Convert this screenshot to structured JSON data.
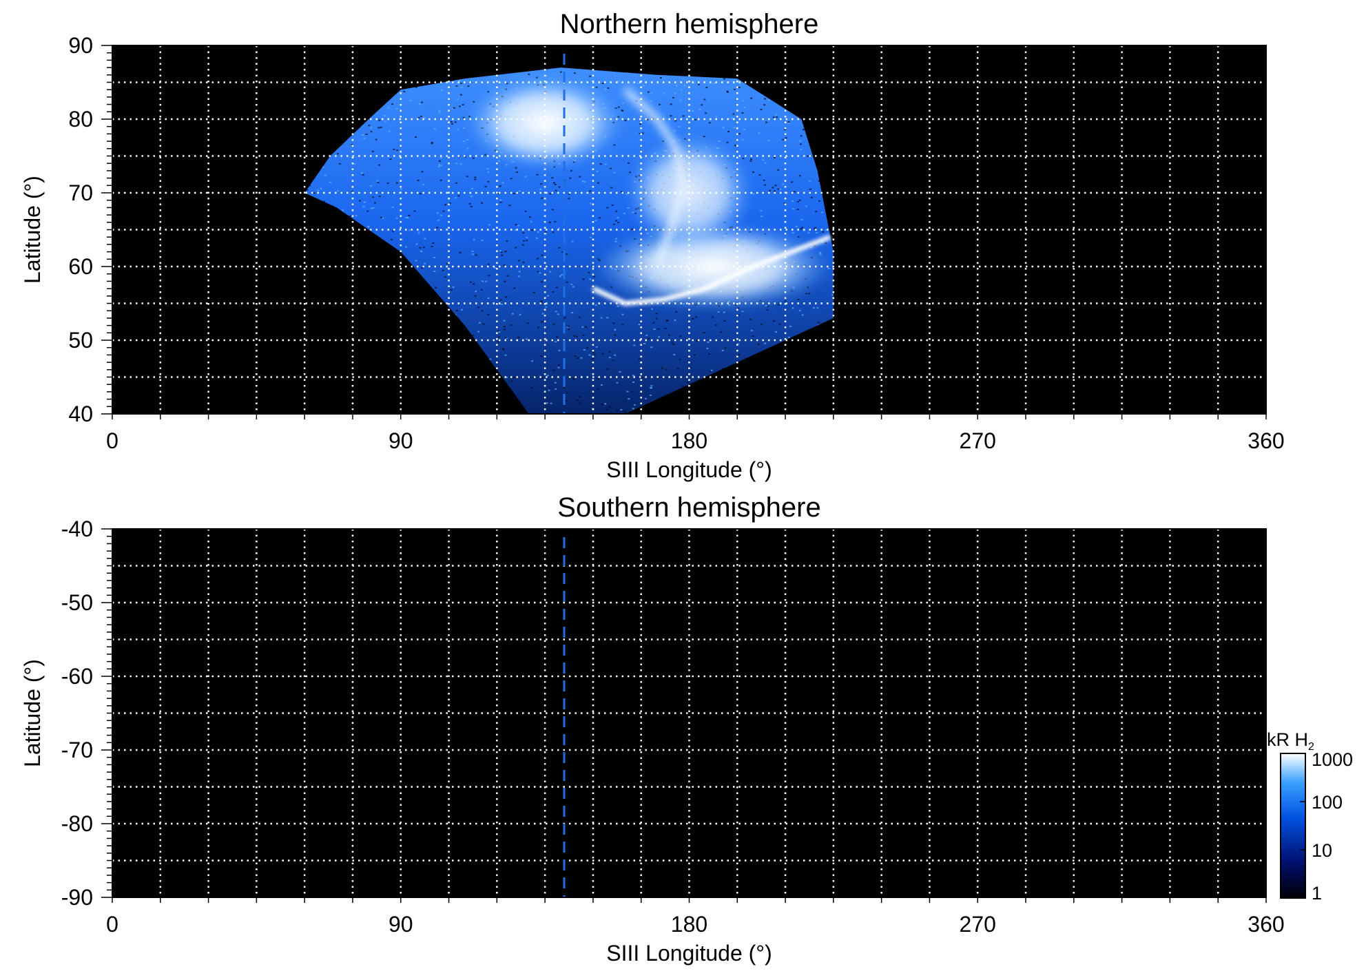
{
  "chart_data": [
    {
      "type": "heatmap",
      "title": "Northern hemisphere",
      "xlabel": "SIII Longitude (°)",
      "ylabel": "Latitude (°)",
      "xlim": [
        0,
        360
      ],
      "ylim": [
        40,
        90
      ],
      "xticks": [
        "0",
        "90",
        "180",
        "270",
        "360"
      ],
      "yticks": [
        "40",
        "50",
        "60",
        "70",
        "80",
        "90"
      ],
      "grid": true,
      "reference_longitude": 141,
      "emission_region": {
        "lon_range": [
          60,
          225
        ],
        "lat_range": [
          40,
          87
        ],
        "boundary": [
          [
            60,
            70
          ],
          [
            68,
            75
          ],
          [
            80,
            80
          ],
          [
            90,
            84
          ],
          [
            110,
            85.5
          ],
          [
            140,
            87
          ],
          [
            170,
            86
          ],
          [
            195,
            85.5
          ],
          [
            215,
            80
          ],
          [
            220,
            73
          ],
          [
            225,
            62
          ],
          [
            225,
            53
          ],
          [
            210,
            50
          ],
          [
            185,
            45
          ],
          [
            160,
            40
          ],
          [
            130,
            40
          ],
          [
            110,
            52
          ],
          [
            90,
            62
          ],
          [
            70,
            68
          ],
          [
            60,
            70
          ]
        ],
        "bright_features": [
          {
            "name": "polar cap emission",
            "lon_range": [
              110,
              160
            ],
            "lat_range": [
              73,
              86
            ],
            "kR": 1000
          },
          {
            "name": "main oval arc",
            "lon_range": [
              150,
              225
            ],
            "lat_range": [
              54,
              66
            ],
            "kR": 1000
          },
          {
            "name": "inner swirl",
            "lon_range": [
              160,
              200
            ],
            "lat_range": [
              62,
              78
            ],
            "kR": 400
          }
        ]
      }
    },
    {
      "type": "heatmap",
      "title": "Southern hemisphere",
      "xlabel": "SIII Longitude (°)",
      "ylabel": "Latitude (°)",
      "xlim": [
        0,
        360
      ],
      "ylim": [
        -90,
        -40
      ],
      "xticks": [
        "0",
        "90",
        "180",
        "270",
        "360"
      ],
      "yticks": [
        "-40",
        "-50",
        "-60",
        "-70",
        "-80",
        "-90"
      ],
      "grid": true,
      "reference_longitude": 141,
      "emission_region": null
    }
  ],
  "colorbar": {
    "label": "kR H",
    "label_subscript": "2",
    "scale": "log",
    "range": [
      1,
      1000
    ],
    "ticks": [
      "1000",
      "100",
      "10",
      "1"
    ],
    "colors": [
      "#000005",
      "#001070",
      "#0050e0",
      "#3aa0ff",
      "#ffffff"
    ]
  },
  "colors": {
    "background": "#000000",
    "grid": "#ffffff",
    "reference_line": "#1f6fe8"
  }
}
